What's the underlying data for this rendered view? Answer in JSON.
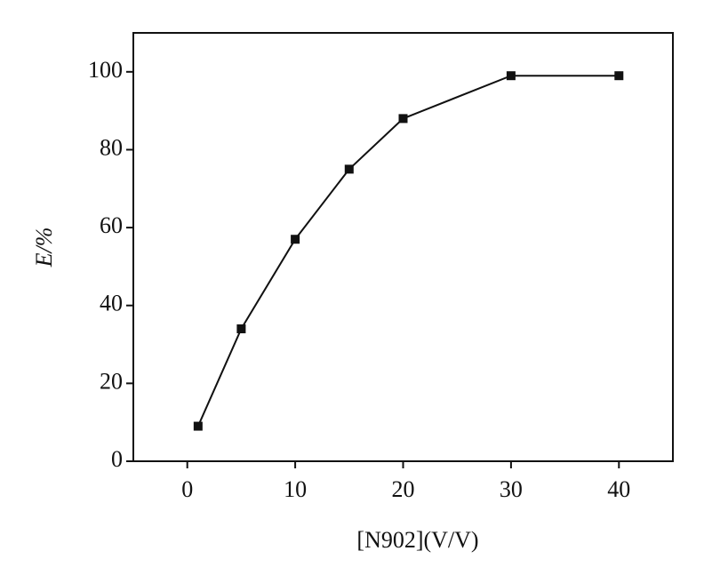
{
  "chart_data": {
    "type": "line",
    "x_label": "[N902](V/V)",
    "y_label": "E/%",
    "x": [
      1,
      5,
      10,
      15,
      20,
      30,
      40
    ],
    "series": [
      {
        "color": "#111111",
        "values": [
          9,
          34,
          57,
          75,
          88,
          99,
          99
        ]
      }
    ],
    "xlim": [
      -5,
      45
    ],
    "xticks": [
      0,
      10,
      20,
      30,
      40
    ],
    "ylim": [
      0,
      110
    ],
    "yticks": [
      0,
      20,
      40,
      60,
      80,
      100
    ],
    "grid": false
  }
}
